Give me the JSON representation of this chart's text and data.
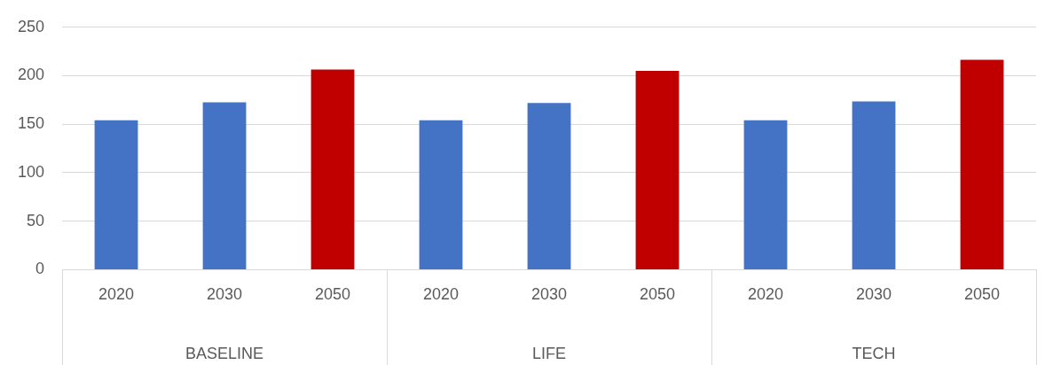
{
  "chart_data": {
    "type": "bar",
    "categories": [
      "2020",
      "2030",
      "2050",
      "2020",
      "2030",
      "2050",
      "2020",
      "2030",
      "2050"
    ],
    "values": [
      154,
      172.5,
      206.5,
      154,
      172,
      205,
      154,
      173.5,
      216.5
    ],
    "colors": [
      "#4472c4",
      "#4472c4",
      "#c00000",
      "#4472c4",
      "#4472c4",
      "#c00000",
      "#4472c4",
      "#4472c4",
      "#c00000"
    ],
    "ylim": [
      0,
      250
    ],
    "yticks": [
      0,
      50,
      100,
      150,
      200,
      250
    ],
    "grid": "y",
    "annotations": [
      "BASELINE",
      "LIFE",
      "TECH"
    ]
  }
}
